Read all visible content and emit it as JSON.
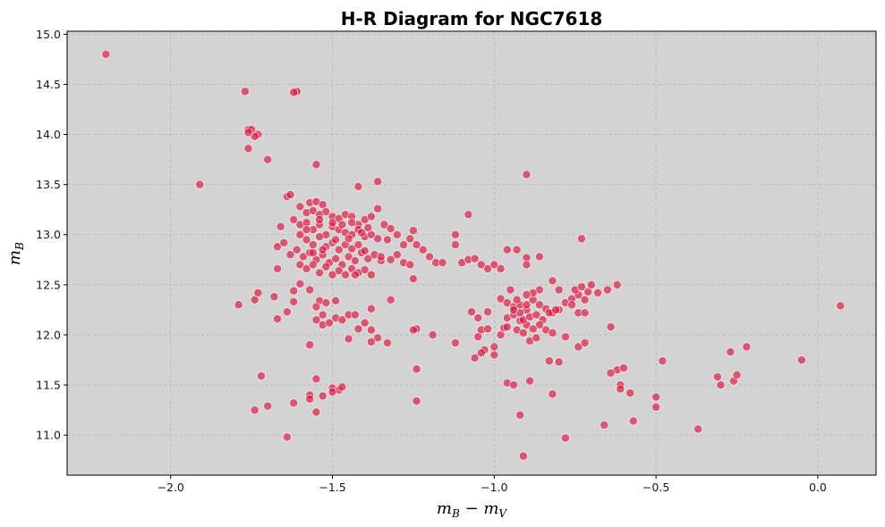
{
  "chart_data": {
    "type": "scatter",
    "title": "H-R Diagram for NGC7618",
    "xlabel": "m_B − m_V",
    "ylabel": "m_B",
    "xlim": [
      -2.32,
      0.18
    ],
    "ylim": [
      10.6,
      15.03
    ],
    "x_ticks": [
      "−2.0",
      "−1.5",
      "−1.0",
      "−0.5",
      "0.0"
    ],
    "y_ticks": [
      "11.0",
      "11.5",
      "12.0",
      "12.5",
      "13.0",
      "13.5",
      "14.0",
      "14.5",
      "15.0"
    ],
    "grid": true,
    "background_color": "#d3d3d3",
    "marker_color": "#dc143c",
    "points": [
      [
        -2.2,
        14.8
      ],
      [
        -1.77,
        14.43
      ],
      [
        -1.61,
        14.43
      ],
      [
        -1.62,
        14.42
      ],
      [
        -1.76,
        14.05
      ],
      [
        -1.75,
        14.05
      ],
      [
        -1.73,
        14.0
      ],
      [
        -1.74,
        13.98
      ],
      [
        -1.76,
        14.02
      ],
      [
        -1.76,
        13.86
      ],
      [
        -1.7,
        13.75
      ],
      [
        -1.91,
        13.5
      ],
      [
        -1.55,
        13.7
      ],
      [
        -1.42,
        13.48
      ],
      [
        -1.36,
        13.53
      ],
      [
        -0.9,
        13.6
      ],
      [
        -1.64,
        13.38
      ],
      [
        -1.63,
        13.4
      ],
      [
        -1.6,
        13.28
      ],
      [
        -1.57,
        13.32
      ],
      [
        -1.55,
        13.33
      ],
      [
        -1.53,
        13.3
      ],
      [
        -1.58,
        13.22
      ],
      [
        -1.56,
        13.24
      ],
      [
        -1.54,
        13.2
      ],
      [
        -1.52,
        13.23
      ],
      [
        -1.5,
        13.18
      ],
      [
        -1.48,
        13.16
      ],
      [
        -1.46,
        13.2
      ],
      [
        -1.44,
        13.18
      ],
      [
        -1.42,
        13.1
      ],
      [
        -1.4,
        13.15
      ],
      [
        -1.38,
        13.18
      ],
      [
        -1.36,
        13.26
      ],
      [
        -1.34,
        13.1
      ],
      [
        -1.32,
        13.06
      ],
      [
        -1.62,
        13.15
      ],
      [
        -1.6,
        13.1
      ],
      [
        -1.58,
        13.12
      ],
      [
        -1.56,
        13.05
      ],
      [
        -1.54,
        13.1
      ],
      [
        -1.52,
        13.0
      ],
      [
        -1.5,
        13.08
      ],
      [
        -1.48,
        13.05
      ],
      [
        -1.46,
        13.02
      ],
      [
        -1.44,
        13.0
      ],
      [
        -1.42,
        13.05
      ],
      [
        -1.4,
        12.98
      ],
      [
        -1.38,
        13.0
      ],
      [
        -1.36,
        12.96
      ],
      [
        -1.66,
        13.08
      ],
      [
        -1.67,
        12.88
      ],
      [
        -1.65,
        12.92
      ],
      [
        -1.63,
        12.8
      ],
      [
        -1.61,
        12.85
      ],
      [
        -1.59,
        12.78
      ],
      [
        -1.57,
        12.82
      ],
      [
        -1.55,
        12.75
      ],
      [
        -1.53,
        12.8
      ],
      [
        -1.51,
        12.72
      ],
      [
        -1.49,
        12.76
      ],
      [
        -1.47,
        12.7
      ],
      [
        -1.45,
        12.78
      ],
      [
        -1.43,
        12.74
      ],
      [
        -1.41,
        12.82
      ],
      [
        -1.39,
        12.76
      ],
      [
        -1.37,
        12.8
      ],
      [
        -1.35,
        12.74
      ],
      [
        -1.58,
        12.95
      ],
      [
        -1.56,
        12.9
      ],
      [
        -1.54,
        12.98
      ],
      [
        -1.52,
        12.88
      ],
      [
        -1.5,
        12.92
      ],
      [
        -1.48,
        12.85
      ],
      [
        -1.46,
        12.9
      ],
      [
        -1.44,
        12.86
      ],
      [
        -1.42,
        12.9
      ],
      [
        -1.4,
        12.84
      ],
      [
        -1.67,
        12.66
      ],
      [
        -1.6,
        12.7
      ],
      [
        -1.58,
        12.66
      ],
      [
        -1.56,
        12.7
      ],
      [
        -1.54,
        12.62
      ],
      [
        -1.52,
        12.68
      ],
      [
        -1.5,
        12.6
      ],
      [
        -1.48,
        12.64
      ],
      [
        -1.46,
        12.6
      ],
      [
        -1.44,
        12.66
      ],
      [
        -1.42,
        12.62
      ],
      [
        -1.4,
        12.65
      ],
      [
        -1.38,
        12.6
      ],
      [
        -1.6,
        13.0
      ],
      [
        -1.58,
        13.05
      ],
      [
        -1.54,
        13.15
      ],
      [
        -1.5,
        13.12
      ],
      [
        -1.47,
        13.1
      ],
      [
        -1.44,
        13.12
      ],
      [
        -1.41,
        13.02
      ],
      [
        -1.39,
        13.07
      ],
      [
        -1.56,
        12.82
      ],
      [
        -1.53,
        12.85
      ],
      [
        -1.49,
        12.95
      ],
      [
        -1.45,
        12.96
      ],
      [
        -1.43,
        12.6
      ],
      [
        -1.33,
        12.95
      ],
      [
        -1.3,
        13.0
      ],
      [
        -1.28,
        12.9
      ],
      [
        -1.26,
        12.96
      ],
      [
        -1.24,
        12.9
      ],
      [
        -1.25,
        13.04
      ],
      [
        -1.22,
        12.85
      ],
      [
        -1.2,
        12.78
      ],
      [
        -1.18,
        12.72
      ],
      [
        -1.16,
        12.72
      ],
      [
        -1.28,
        12.72
      ],
      [
        -1.26,
        12.7
      ],
      [
        -1.32,
        12.75
      ],
      [
        -1.3,
        12.8
      ],
      [
        -1.35,
        12.78
      ],
      [
        -1.12,
        12.9
      ],
      [
        -1.12,
        13.0
      ],
      [
        -1.08,
        13.2
      ],
      [
        -1.1,
        12.72
      ],
      [
        -1.08,
        12.75
      ],
      [
        -1.06,
        12.76
      ],
      [
        -1.04,
        12.7
      ],
      [
        -1.02,
        12.66
      ],
      [
        -1.0,
        12.7
      ],
      [
        -0.98,
        12.66
      ],
      [
        -0.96,
        12.85
      ],
      [
        -0.93,
        12.85
      ],
      [
        -0.9,
        12.77
      ],
      [
        -0.9,
        12.7
      ],
      [
        -0.86,
        12.78
      ],
      [
        -1.25,
        12.56
      ],
      [
        -1.62,
        12.44
      ],
      [
        -1.62,
        12.33
      ],
      [
        -1.64,
        12.23
      ],
      [
        -1.6,
        12.51
      ],
      [
        -1.57,
        12.45
      ],
      [
        -1.54,
        12.34
      ],
      [
        -1.52,
        12.32
      ],
      [
        -1.49,
        12.34
      ],
      [
        -1.55,
        12.28
      ],
      [
        -1.53,
        12.2
      ],
      [
        -1.55,
        12.15
      ],
      [
        -1.53,
        12.1
      ],
      [
        -1.51,
        12.12
      ],
      [
        -1.49,
        12.17
      ],
      [
        -1.47,
        12.15
      ],
      [
        -1.45,
        12.2
      ],
      [
        -1.43,
        12.2
      ],
      [
        -1.68,
        12.38
      ],
      [
        -1.74,
        12.35
      ],
      [
        -1.73,
        12.42
      ],
      [
        -1.79,
        12.3
      ],
      [
        -1.67,
        12.16
      ],
      [
        -1.4,
        12.12
      ],
      [
        -1.38,
        12.05
      ],
      [
        -1.36,
        11.97
      ],
      [
        -1.33,
        11.92
      ],
      [
        -1.38,
        12.26
      ],
      [
        -1.32,
        12.35
      ],
      [
        -1.24,
        12.06
      ],
      [
        -1.25,
        12.05
      ],
      [
        -1.19,
        12.0
      ],
      [
        -1.12,
        11.92
      ],
      [
        -1.45,
        11.96
      ],
      [
        -1.42,
        12.06
      ],
      [
        -1.38,
        11.93
      ],
      [
        -1.57,
        11.9
      ],
      [
        -1.07,
        12.23
      ],
      [
        -1.05,
        12.17
      ],
      [
        -1.02,
        12.23
      ],
      [
        -1.04,
        12.05
      ],
      [
        -1.02,
        12.06
      ],
      [
        -1.05,
        11.98
      ],
      [
        -1.0,
        11.88
      ],
      [
        -1.03,
        11.85
      ],
      [
        -1.06,
        11.77
      ],
      [
        -1.04,
        11.82
      ],
      [
        -1.0,
        11.8
      ],
      [
        -0.98,
        12.0
      ],
      [
        -0.97,
        12.07
      ],
      [
        -0.96,
        12.17
      ],
      [
        -0.94,
        12.2
      ],
      [
        -0.92,
        12.14
      ],
      [
        -0.9,
        12.1
      ],
      [
        -0.93,
        12.05
      ],
      [
        -0.91,
        12.02
      ],
      [
        -0.89,
        11.94
      ],
      [
        -0.87,
        11.97
      ],
      [
        -0.84,
        12.05
      ],
      [
        -0.82,
        12.02
      ],
      [
        -0.98,
        12.36
      ],
      [
        -0.96,
        12.32
      ],
      [
        -0.94,
        12.28
      ],
      [
        -0.92,
        12.3
      ],
      [
        -0.9,
        12.25
      ],
      [
        -0.88,
        12.35
      ],
      [
        -0.86,
        12.3
      ],
      [
        -0.84,
        12.26
      ],
      [
        -0.82,
        12.22
      ],
      [
        -0.8,
        12.25
      ],
      [
        -0.78,
        12.32
      ],
      [
        -0.76,
        12.36
      ],
      [
        -0.74,
        12.4
      ],
      [
        -0.72,
        12.35
      ],
      [
        -0.75,
        12.45
      ],
      [
        -0.73,
        12.48
      ],
      [
        -0.71,
        12.43
      ],
      [
        -0.7,
        12.5
      ],
      [
        -0.68,
        12.42
      ],
      [
        -0.8,
        12.45
      ],
      [
        -0.82,
        12.54
      ],
      [
        -0.86,
        12.45
      ],
      [
        -0.88,
        12.42
      ],
      [
        -0.9,
        12.4
      ],
      [
        -0.93,
        12.35
      ],
      [
        -0.95,
        12.45
      ],
      [
        -0.91,
        12.15
      ],
      [
        -0.89,
        12.18
      ],
      [
        -0.87,
        12.2
      ],
      [
        -0.85,
        12.15
      ],
      [
        -0.83,
        12.22
      ],
      [
        -0.81,
        12.25
      ],
      [
        -0.92,
        12.22
      ],
      [
        -0.94,
        12.25
      ],
      [
        -0.96,
        12.08
      ],
      [
        -0.9,
        12.3
      ],
      [
        -0.86,
        12.1
      ],
      [
        -0.88,
        12.06
      ],
      [
        -0.78,
        11.98
      ],
      [
        -0.76,
        12.3
      ],
      [
        -0.74,
        12.22
      ],
      [
        -0.72,
        12.22
      ],
      [
        -0.74,
        11.88
      ],
      [
        -0.72,
        11.92
      ],
      [
        -0.65,
        12.45
      ],
      [
        -0.62,
        12.5
      ],
      [
        -0.73,
        12.96
      ],
      [
        -0.64,
        12.08
      ],
      [
        -0.62,
        11.65
      ],
      [
        -0.6,
        11.67
      ],
      [
        -0.64,
        11.62
      ],
      [
        -0.61,
        11.5
      ],
      [
        -0.61,
        11.46
      ],
      [
        -0.58,
        11.42
      ],
      [
        -0.57,
        11.14
      ],
      [
        -0.5,
        11.38
      ],
      [
        -0.5,
        11.28
      ],
      [
        -0.48,
        11.74
      ],
      [
        -0.66,
        11.1
      ],
      [
        -0.37,
        11.06
      ],
      [
        -0.31,
        11.58
      ],
      [
        -0.3,
        11.5
      ],
      [
        -0.27,
        11.83
      ],
      [
        -0.22,
        11.88
      ],
      [
        -0.26,
        11.54
      ],
      [
        -0.25,
        11.6
      ],
      [
        -0.05,
        11.75
      ],
      [
        0.07,
        12.29
      ],
      [
        -0.83,
        11.74
      ],
      [
        -0.8,
        11.73
      ],
      [
        -0.82,
        11.41
      ],
      [
        -0.78,
        10.97
      ],
      [
        -0.92,
        11.2
      ],
      [
        -0.91,
        10.79
      ],
      [
        -0.96,
        11.52
      ],
      [
        -0.94,
        11.5
      ],
      [
        -0.89,
        11.54
      ],
      [
        -1.24,
        11.66
      ],
      [
        -1.24,
        11.34
      ],
      [
        -1.5,
        11.47
      ],
      [
        -1.48,
        11.45
      ],
      [
        -1.5,
        11.43
      ],
      [
        -1.47,
        11.48
      ],
      [
        -1.53,
        11.39
      ],
      [
        -1.55,
        11.56
      ],
      [
        -1.57,
        11.4
      ],
      [
        -1.57,
        11.36
      ],
      [
        -1.55,
        11.23
      ],
      [
        -1.62,
        11.32
      ],
      [
        -1.72,
        11.59
      ],
      [
        -1.7,
        11.29
      ],
      [
        -1.74,
        11.25
      ],
      [
        -1.64,
        10.98
      ]
    ]
  }
}
